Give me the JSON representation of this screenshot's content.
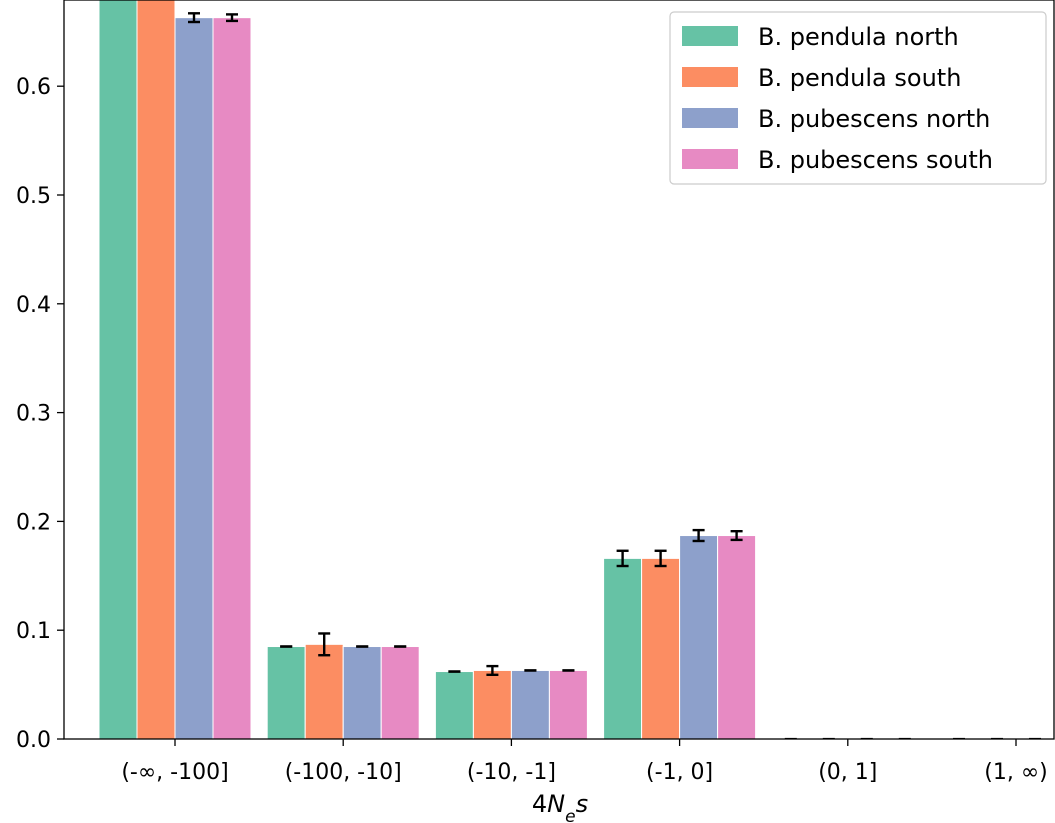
{
  "chart_data": {
    "type": "bar",
    "title": "",
    "xlabel_parts": {
      "prefix": "4",
      "var": "N",
      "sub": "e",
      "suffix": "s"
    },
    "ylabel": "",
    "ylim": [
      0,
      0.68
    ],
    "yticks": [
      "0.0",
      "0.1",
      "0.2",
      "0.3",
      "0.4",
      "0.5",
      "0.6"
    ],
    "categories": [
      "(-∞, -100]",
      "(-100, -10]",
      "(-10, -1]",
      "(-1, 0]",
      "(0, 1]",
      "(1, ∞)"
    ],
    "legend_position": "top-right",
    "grid": false,
    "series": [
      {
        "name": "B. pendula north",
        "color": "#66c2a5",
        "values": [
          0.69,
          0.085,
          0.062,
          0.166,
          0.0,
          0.0
        ],
        "errors": [
          0.0,
          0.0,
          0.0,
          0.007,
          0.0,
          0.0
        ]
      },
      {
        "name": "B. pendula south",
        "color": "#fc8d62",
        "values": [
          0.69,
          0.087,
          0.063,
          0.166,
          0.0,
          0.0
        ],
        "errors": [
          0.0,
          0.01,
          0.004,
          0.007,
          0.0,
          0.0
        ]
      },
      {
        "name": "B. pubescens north",
        "color": "#8da0cb",
        "values": [
          0.663,
          0.085,
          0.063,
          0.187,
          0.0,
          0.0
        ],
        "errors": [
          0.004,
          0.0,
          0.0,
          0.005,
          0.0,
          0.0
        ]
      },
      {
        "name": "B. pubescens south",
        "color": "#e78ac3",
        "values": [
          0.663,
          0.085,
          0.063,
          0.187,
          0.0,
          0.0
        ],
        "errors": [
          0.003,
          0.0,
          0.0,
          0.004,
          0.0,
          0.0
        ]
      }
    ]
  }
}
